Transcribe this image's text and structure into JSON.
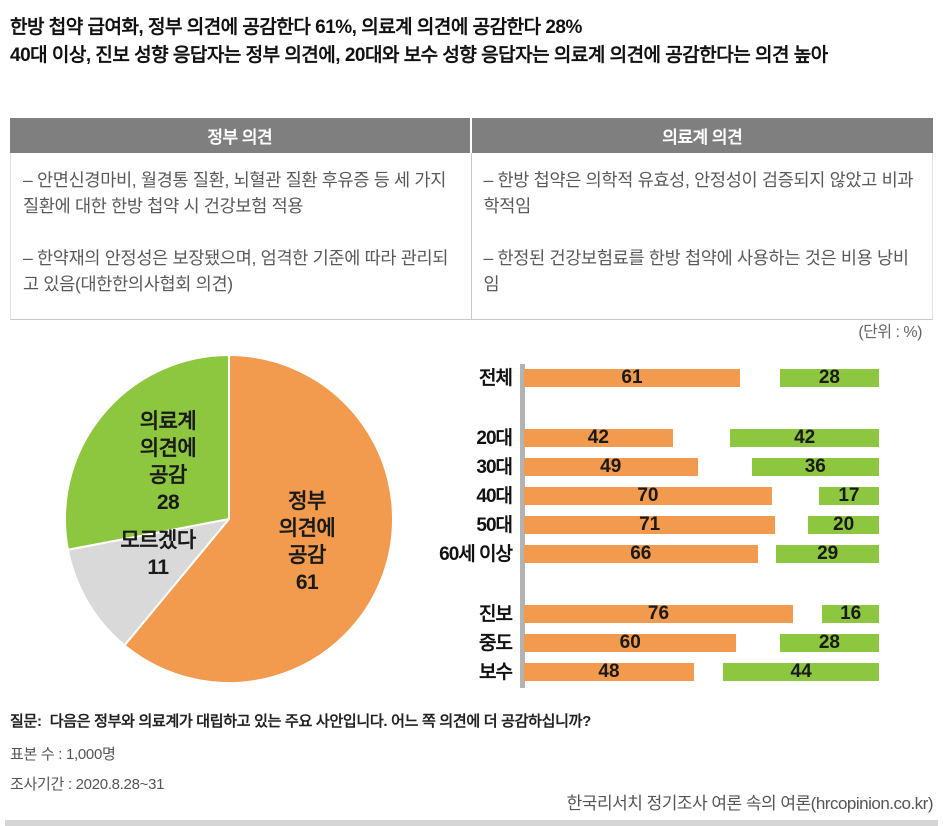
{
  "header": {
    "title_line1": "한방 첩약 급여화, 정부 의견에 공감한다 61%, 의료계 의견에 공감한다 28%",
    "title_line2": "40대 이상, 진보 성향 응답자는 정부 의견에, 20대와 보수 성향 응답자는 의료계 의견에 공감한다는 의견 높아"
  },
  "comparison_table": {
    "columns": [
      {
        "header": "정부 의견",
        "points": [
          "– 안면신경마비, 월경통 질환, 뇌혈관 질환 후유증 등 세 가지 질환에 대한 한방 첩약 시 건강보험 적용",
          "– 한약재의 안정성은 보장됐으며, 엄격한 기준에 따라 관리되고 있음(대한한의사협회 의견)"
        ]
      },
      {
        "header": "의료계 의견",
        "points": [
          "– 한방 첩약은 의학적 유효성, 안정성이 검증되지 않았고 비과학적임",
          "– 한정된 건강보험료를 한방 첩약에 사용하는 것은 비용 낭비임"
        ]
      }
    ]
  },
  "unit_label": "(단위 : %)",
  "colors": {
    "government_orange": "#F29A4D",
    "medical_green": "#8DC63F",
    "dont_know_gray": "#D9D9D9",
    "table_header_gray": "#7F7F7F",
    "axis_gray": "#B3B3B3"
  },
  "chart_data": [
    {
      "type": "pie",
      "direction": "clockwise",
      "start_angle_deg": 0,
      "slices": [
        {
          "label": "정부 의견에 공감",
          "label_lines": [
            "정부",
            "의견에",
            "공감"
          ],
          "value": 61,
          "color": "#F29A4D"
        },
        {
          "label": "모르겠다",
          "label_lines": [
            "모르겠다"
          ],
          "value": 11,
          "color": "#D9D9D9"
        },
        {
          "label": "의료계 의견에 공감",
          "label_lines": [
            "의료계",
            "의견에",
            "공감"
          ],
          "value": 28,
          "color": "#8DC63F"
        }
      ]
    },
    {
      "type": "bar",
      "orientation": "horizontal-opposed",
      "xlim": [
        0,
        100
      ],
      "categories": [
        "전체",
        "20대",
        "30대",
        "40대",
        "50대",
        "60세 이상",
        "진보",
        "중도",
        "보수"
      ],
      "series": [
        {
          "name": "정부 의견에 공감",
          "color": "#F29A4D",
          "align": "left",
          "values": [
            61,
            42,
            49,
            70,
            71,
            66,
            76,
            60,
            48
          ]
        },
        {
          "name": "의료계 의견에 공감",
          "color": "#8DC63F",
          "align": "right",
          "values": [
            28,
            42,
            36,
            17,
            20,
            29,
            16,
            28,
            44
          ]
        }
      ],
      "groups": [
        [
          "전체"
        ],
        [
          "20대",
          "30대",
          "40대",
          "50대",
          "60세 이상"
        ],
        [
          "진보",
          "중도",
          "보수"
        ]
      ]
    }
  ],
  "footnotes": {
    "question_label": "질문:",
    "question_text": "다음은 정부와 의료계가 대립하고 있는 주요 사안입니다. 어느 쪽 의견에 더 공감하십니까?",
    "sample_size": "표본 수 : 1,000명",
    "survey_period": "조사기간 : 2020.8.28~31",
    "credit": "한국리서치 정기조사 여론 속의 여론(hrcopinion.co.kr)"
  }
}
